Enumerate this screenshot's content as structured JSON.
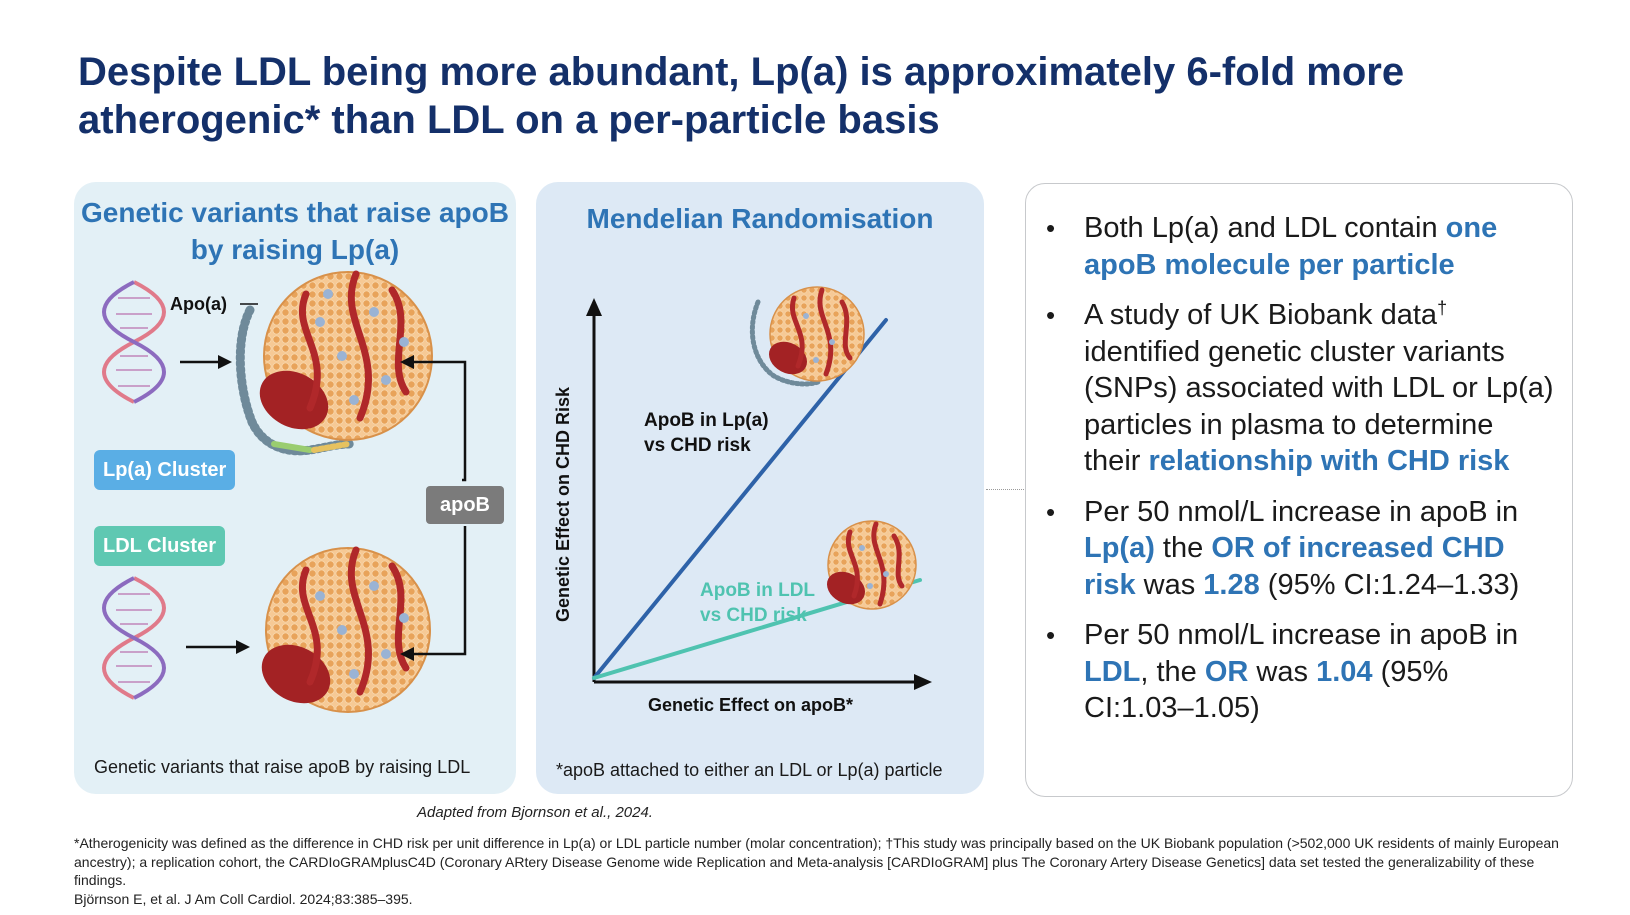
{
  "slide": {
    "title": "Despite LDL being more abundant, Lp(a) is approximately 6-fold more atherogenic* than LDL on a per-particle basis"
  },
  "genetic_panel": {
    "heading": "Genetic variants that raise apoB by raising Lp(a)",
    "apoa_label": "Apo(a)",
    "lpa_cluster_label": "Lp(a) Cluster",
    "ldl_cluster_label": "LDL Cluster",
    "apob_label": "apoB",
    "caption": "Genetic variants that raise apoB by raising LDL"
  },
  "mr_panel": {
    "heading": "Mendelian Randomisation",
    "caption": "*apoB attached to either an LDL or Lp(a) particle"
  },
  "chart_data": {
    "type": "line",
    "xlabel": "Genetic Effect on apoB*",
    "ylabel": "Genetic Effect on CHD Risk",
    "series": [
      {
        "name": "ApoB in Lp(a) vs CHD risk",
        "line1": "ApoB in Lp(a)",
        "line2": "vs CHD risk",
        "color": "#2e62a8",
        "slope": 1.28
      },
      {
        "name": "ApoB in LDL vs CHD risk",
        "line1": "ApoB in LDL",
        "line2": "vs CHD risk",
        "color": "#4fc3b0",
        "slope": 1.04
      }
    ]
  },
  "bullets": {
    "b1": {
      "t1": "Both Lp(a) and LDL contain ",
      "h1": "one apoB molecule per particle"
    },
    "b2": {
      "t1": "A study of UK Biobank data",
      "sup": "†",
      "t2": " identified genetic cluster variants (SNPs) associated with LDL or Lp(a) particles in plasma to determine their ",
      "h1": "relationship with CHD risk"
    },
    "b3": {
      "t1": "Per 50 nmol/L increase in apoB in ",
      "h1": "Lp(a)",
      "t2": " the ",
      "h2": "OR of increased CHD risk",
      "t3": " was ",
      "h3": "1.28",
      "t4": " (95% CI:1.24–1.33)"
    },
    "b4": {
      "t1": "Per 50 nmol/L increase in apoB in ",
      "h1": "LDL",
      "t2": ", the ",
      "h2": "OR",
      "t3": " was ",
      "h3": "1.04",
      "t4": " (95% CI:1.03–1.05)"
    }
  },
  "source": {
    "adapted": "Adapted from Bjornson et al., 2024.",
    "footnote_1": "*Atherogenicity was defined as the difference in CHD risk per unit difference in Lp(a) or LDL particle number (molar concentration); †This study was principally based on the UK Biobank population (>502,000 UK residents of mainly European ancestry); a replication cohort, the CARDIoGRAMplusC4D (Coronary ARtery Disease Genome wide Replication and Meta-analysis [CARDIoGRAM] plus The Coronary Artery Disease Genetics] data set tested the generalizability of these findings.",
    "footnote_2": "Björnson E, et al. J Am Coll Cardiol. 2024;83:385–395."
  },
  "colors": {
    "title": "#14306a",
    "accent_blue": "#2e74b5",
    "lpa_cluster": "#5aaee5",
    "ldl_cluster": "#5fc8b2",
    "particle_shell": "#e8a35a",
    "apob_protein": "#b0282a",
    "apoa_strand": "#b0282a"
  }
}
